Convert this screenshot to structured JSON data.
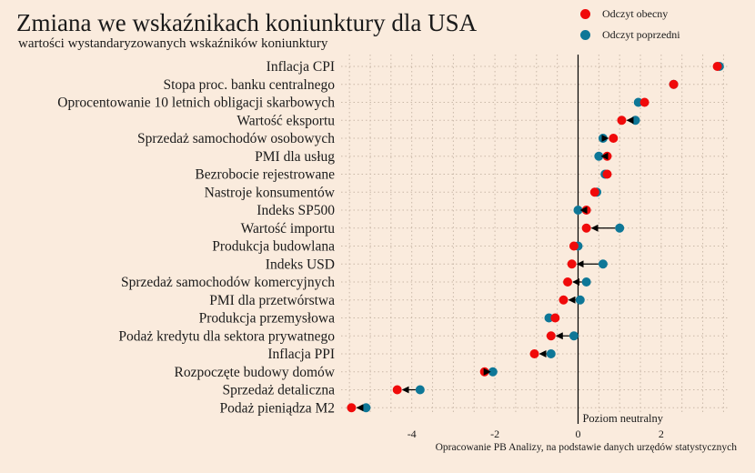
{
  "chart_data": {
    "type": "scatter",
    "title": "Zmiana we wskaźnikach koniunktury dla USA",
    "subtitle": "wartości wystandaryzowanych wskaźników koniunktury",
    "source": "Opracowanie PB Analizy, na podstawie danych urzędów statystycznych",
    "neutral_label": "Poziom neutralny",
    "xlim": [
      -5.7,
      3.6
    ],
    "xticks": [
      -4,
      -2,
      0,
      2
    ],
    "xtick_labels": [
      "-4",
      "-2",
      "0",
      "2"
    ],
    "grid": true,
    "legend_position": "top-right",
    "colors": {
      "current": "#f00a0a",
      "previous": "#0e7797",
      "arrow": "#000000"
    },
    "series": [
      {
        "name": "Odczyt obecny",
        "key": "current"
      },
      {
        "name": "Odczyt poprzedni",
        "key": "previous"
      }
    ],
    "categories": [
      "Inflacja CPI",
      "Stopa proc. banku centralnego",
      "Oprocentowanie 10 letnich obligacji skarbowych",
      "Wartość eksportu",
      "Sprzedaż samochodów osobowych",
      "PMI dla usług",
      "Bezrobocie rejestrowane",
      "Nastroje konsumentów",
      "Indeks SP500",
      "Wartość importu",
      "Produkcja budowlana",
      "Indeks USD",
      "Sprzedaż samochodów komercyjnych",
      "PMI dla przetwórstwa",
      "Produkcja przemysłowa",
      "Podaż kredytu dla sektora prywatnego",
      "Inflacja PPI",
      "Rozpoczęte budowy domów",
      "Sprzedaż detaliczna",
      "Podaż pieniądza M2"
    ],
    "current": [
      3.35,
      2.3,
      1.6,
      1.05,
      0.85,
      0.7,
      0.7,
      0.4,
      0.2,
      0.2,
      -0.1,
      -0.15,
      -0.25,
      -0.35,
      -0.55,
      -0.65,
      -1.05,
      -2.25,
      -4.35,
      -5.45
    ],
    "previous": [
      3.4,
      2.3,
      1.45,
      1.38,
      0.6,
      0.5,
      0.65,
      0.45,
      0.0,
      1.0,
      0.0,
      0.6,
      0.2,
      0.05,
      -0.7,
      -0.1,
      -0.65,
      -2.05,
      -3.8,
      -5.1
    ]
  }
}
